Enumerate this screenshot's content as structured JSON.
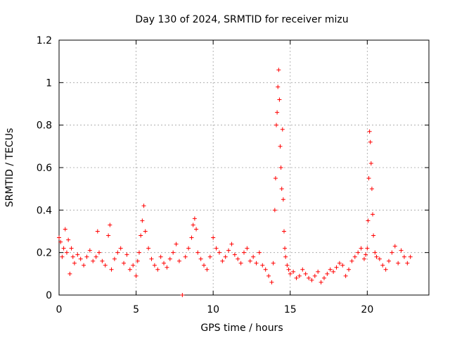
{
  "chart_data": {
    "type": "scatter",
    "title": "Day 130 of 2024, SRMTID for receiver mizu",
    "xlabel": "GPS time / hours",
    "ylabel": "SRMTID / TECUs",
    "xlim": [
      0,
      24
    ],
    "ylim": [
      0,
      1.2
    ],
    "xticks": [
      0,
      5,
      10,
      15,
      20
    ],
    "xtick_labels": [
      "0",
      "5",
      "10",
      "15",
      "20"
    ],
    "yticks": [
      0,
      0.2,
      0.4,
      0.6,
      0.8,
      1,
      1.2
    ],
    "ytick_labels": [
      "0",
      "0.2",
      "0.4",
      "0.6",
      "0.8",
      "1",
      "1.2"
    ],
    "grid": true,
    "marker": "+",
    "series": [
      {
        "name": "mizu",
        "color": "#ff0000",
        "x": [
          0.0,
          0.1,
          0.2,
          0.3,
          0.4,
          0.5,
          0.6,
          0.7,
          0.8,
          0.9,
          1.0,
          1.2,
          1.4,
          1.6,
          1.8,
          2.0,
          2.2,
          2.4,
          2.5,
          2.6,
          2.8,
          3.0,
          3.2,
          3.3,
          3.4,
          3.6,
          3.8,
          4.0,
          4.2,
          4.4,
          4.6,
          4.8,
          5.0,
          5.1,
          5.2,
          5.3,
          5.4,
          5.5,
          5.6,
          5.8,
          6.0,
          6.2,
          6.4,
          6.6,
          6.8,
          7.0,
          7.2,
          7.4,
          7.6,
          7.8,
          8.0,
          8.2,
          8.4,
          8.6,
          8.7,
          8.8,
          8.9,
          9.0,
          9.2,
          9.4,
          9.6,
          9.8,
          10.0,
          10.2,
          10.4,
          10.6,
          10.8,
          11.0,
          11.2,
          11.4,
          11.6,
          11.8,
          12.0,
          12.2,
          12.4,
          12.6,
          12.8,
          13.0,
          13.2,
          13.4,
          13.6,
          13.8,
          13.9,
          14.0,
          14.05,
          14.1,
          14.15,
          14.2,
          14.25,
          14.3,
          14.35,
          14.4,
          14.45,
          14.5,
          14.55,
          14.6,
          14.65,
          14.7,
          14.8,
          14.9,
          15.0,
          15.2,
          15.4,
          15.6,
          15.8,
          16.0,
          16.2,
          16.4,
          16.6,
          16.8,
          17.0,
          17.2,
          17.4,
          17.6,
          17.8,
          18.0,
          18.2,
          18.4,
          18.6,
          18.8,
          19.0,
          19.2,
          19.4,
          19.6,
          19.8,
          19.9,
          20.0,
          20.05,
          20.1,
          20.15,
          20.2,
          20.25,
          20.3,
          20.35,
          20.4,
          20.5,
          20.6,
          20.8,
          21.0,
          21.2,
          21.4,
          21.6,
          21.8,
          22.0,
          22.2,
          22.4,
          22.6,
          22.8
        ],
        "y": [
          0.27,
          0.25,
          0.18,
          0.22,
          0.31,
          0.2,
          0.26,
          0.1,
          0.22,
          0.18,
          0.15,
          0.19,
          0.17,
          0.14,
          0.18,
          0.21,
          0.16,
          0.18,
          0.3,
          0.2,
          0.16,
          0.14,
          0.28,
          0.33,
          0.12,
          0.17,
          0.2,
          0.22,
          0.15,
          0.19,
          0.12,
          0.14,
          0.09,
          0.16,
          0.2,
          0.28,
          0.35,
          0.42,
          0.3,
          0.22,
          0.17,
          0.14,
          0.12,
          0.18,
          0.15,
          0.13,
          0.17,
          0.2,
          0.24,
          0.16,
          0.0,
          0.18,
          0.22,
          0.27,
          0.33,
          0.36,
          0.31,
          0.2,
          0.17,
          0.14,
          0.12,
          0.18,
          0.27,
          0.22,
          0.2,
          0.16,
          0.18,
          0.21,
          0.24,
          0.19,
          0.17,
          0.15,
          0.2,
          0.22,
          0.16,
          0.18,
          0.15,
          0.2,
          0.14,
          0.12,
          0.09,
          0.06,
          0.15,
          0.4,
          0.55,
          0.8,
          0.86,
          0.98,
          1.06,
          0.92,
          0.7,
          0.6,
          0.5,
          0.78,
          0.45,
          0.3,
          0.22,
          0.18,
          0.14,
          0.12,
          0.1,
          0.11,
          0.08,
          0.09,
          0.12,
          0.1,
          0.08,
          0.07,
          0.09,
          0.11,
          0.06,
          0.08,
          0.1,
          0.12,
          0.11,
          0.13,
          0.15,
          0.14,
          0.09,
          0.12,
          0.16,
          0.18,
          0.2,
          0.22,
          0.17,
          0.19,
          0.22,
          0.35,
          0.55,
          0.77,
          0.72,
          0.62,
          0.5,
          0.38,
          0.28,
          0.2,
          0.18,
          0.17,
          0.14,
          0.12,
          0.16,
          0.2,
          0.23,
          0.15,
          0.21,
          0.18,
          0.15,
          0.18
        ]
      }
    ]
  }
}
